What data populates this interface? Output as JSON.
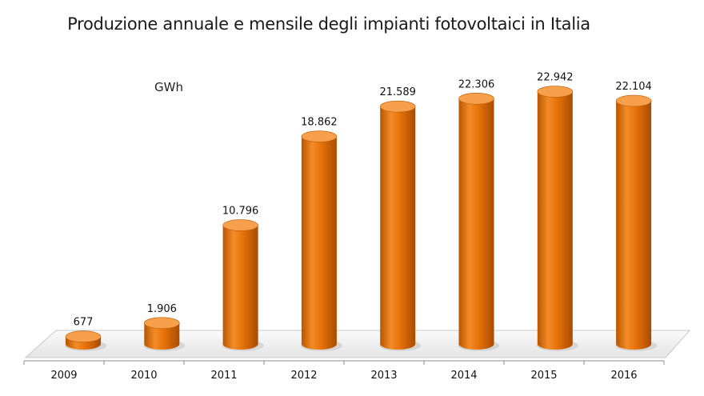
{
  "chart_data": {
    "type": "bar",
    "title": "Produzione annuale e mensile degli impianti fotovoltaici in Italia",
    "unit_label": "GWh",
    "categories": [
      "2009",
      "2010",
      "2011",
      "2012",
      "2013",
      "2014",
      "2015",
      "2016"
    ],
    "values": [
      677,
      1906,
      10796,
      18862,
      21589,
      22306,
      22942,
      22104
    ],
    "data_labels": [
      "677",
      "1.906",
      "10.796",
      "18.862",
      "21.589",
      "22.306",
      "22.942",
      "22.104"
    ],
    "ylim": [
      0,
      24000
    ],
    "grid": false,
    "legend": "none",
    "bar_style": "3d-cylinder",
    "colors": {
      "bar": "#E8730A",
      "bar_dark": "#B85500",
      "bar_light": "#F7A04C",
      "floor": "#F2F2F2"
    }
  }
}
